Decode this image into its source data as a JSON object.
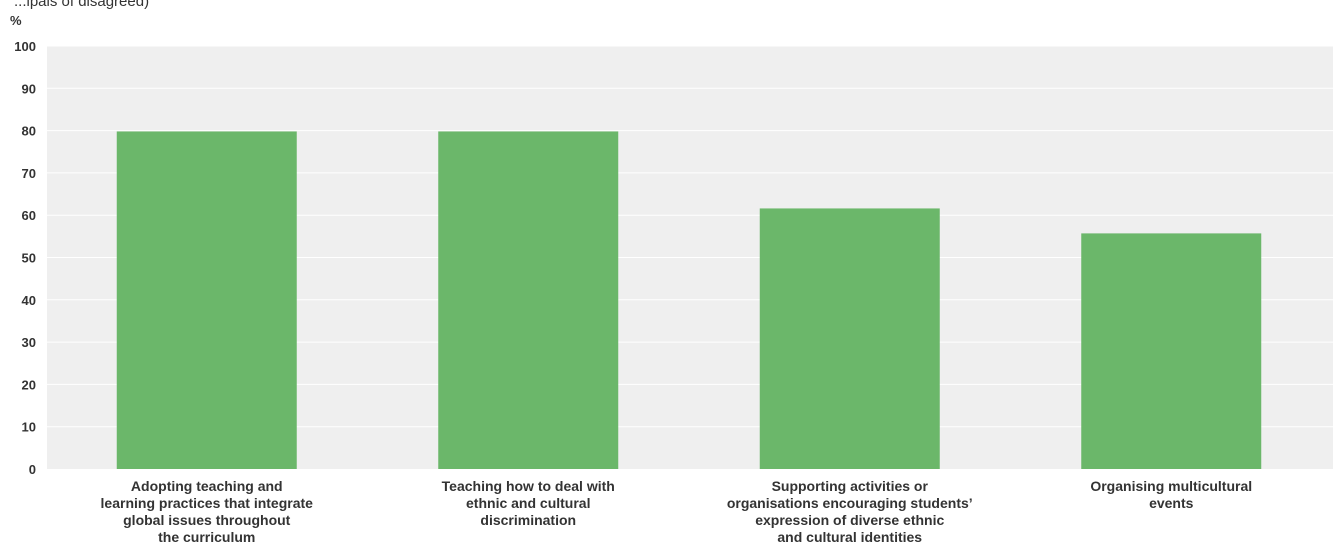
{
  "header": {
    "partial_caption": "...ipals of disagreed)",
    "y_unit": "%"
  },
  "chart_data": {
    "type": "bar",
    "categories": [
      [
        "Adopting teaching and",
        "learning practices that integrate",
        "global issues throughout",
        "the curriculum"
      ],
      [
        "Teaching how to deal with",
        "ethnic and cultural",
        "discrimination"
      ],
      [
        "Supporting activities or",
        "organisations encouraging students’",
        "expression of diverse ethnic",
        "and cultural identities"
      ],
      [
        "Organising multicultural",
        "events"
      ]
    ],
    "values": [
      79.8,
      79.8,
      61.6,
      55.7
    ],
    "yticks": [
      "0",
      "10",
      "20",
      "30",
      "40",
      "50",
      "60",
      "70",
      "80",
      "90",
      "100"
    ],
    "ylim": [
      0,
      100
    ],
    "ylabel": "%",
    "grid": true,
    "colors": {
      "bar": "#6bb76a",
      "plot_bg": "#efefef",
      "grid": "#ffffff",
      "text": "#333333"
    }
  }
}
